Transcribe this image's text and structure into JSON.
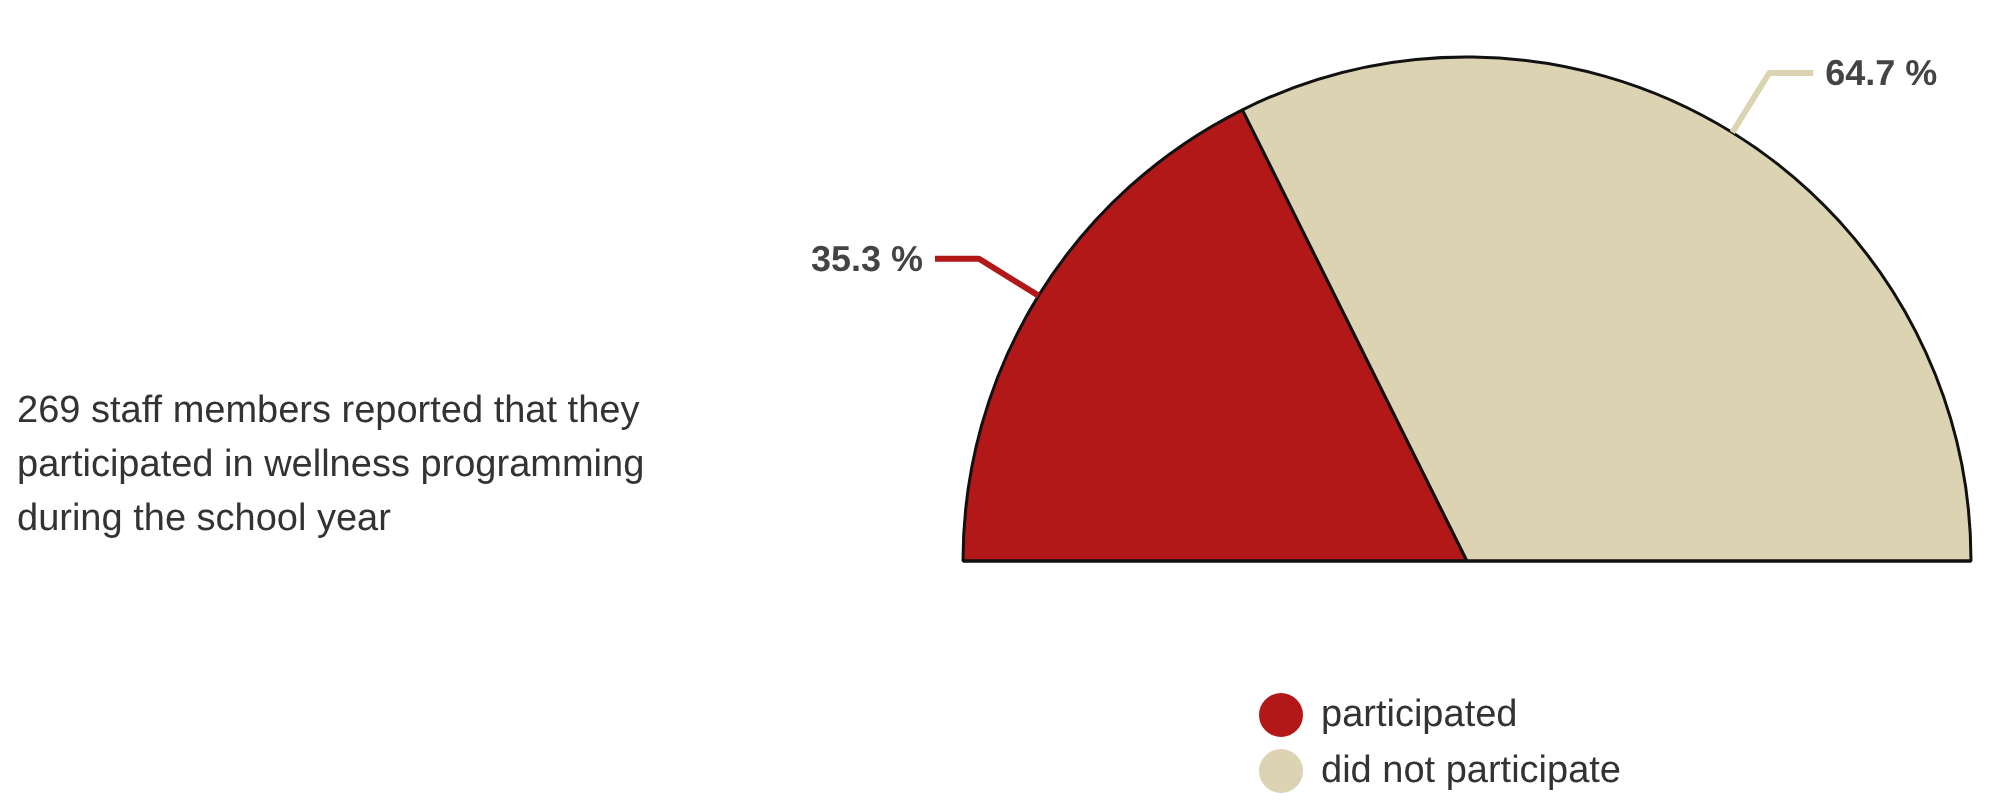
{
  "chart_data": {
    "type": "pie",
    "categories": [
      "participated",
      "did not participate"
    ],
    "values": [
      35.3,
      64.7
    ],
    "colors": [
      "#b31818",
      "#dcd3b3"
    ],
    "value_labels": [
      "35.3 %",
      "64.7 %"
    ],
    "legend": "bottom",
    "annotations": [
      "269 staff members reported that they participated in wellness programming during the school year"
    ]
  }
}
